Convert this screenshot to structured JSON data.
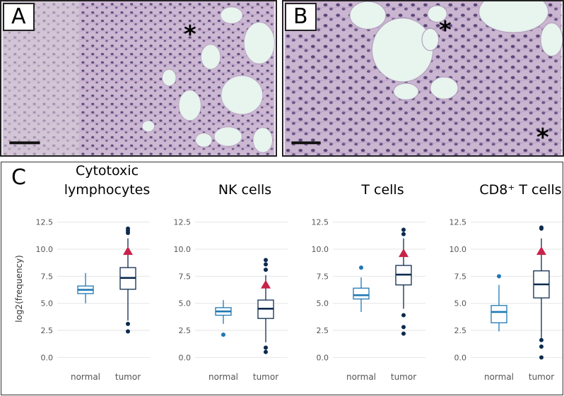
{
  "panels": {
    "a": {
      "label": "A"
    },
    "b": {
      "label": "B"
    },
    "c": {
      "label": "C"
    }
  },
  "colors": {
    "normal": "#1f78b4",
    "tumor": "#0d2b4e",
    "mean_marker": "#c8234a",
    "tissue_bg": "#c9b3cf",
    "fat": "#e8f4ee"
  },
  "icons": {
    "asterisk": "*",
    "scale_bar": "scale-bar"
  },
  "chart_data": [
    {
      "type": "boxplot",
      "title": "Cytotoxic\nlymphocytes",
      "title_lines": [
        "Cytotoxic",
        "lymphocytes"
      ],
      "ylabel": "log2(frequency)",
      "ylim": [
        -0.5,
        13.2
      ],
      "yticks": [
        "0.0",
        "2.5",
        "5.0",
        "7.5",
        "10.0",
        "12.5"
      ],
      "categories": [
        "normal",
        "tumor"
      ],
      "groups": [
        {
          "name": "normal",
          "whisker_low": 5.0,
          "q1": 5.9,
          "median": 6.25,
          "q3": 6.6,
          "whisker_high": 7.8,
          "outliers": []
        },
        {
          "name": "tumor",
          "whisker_low": 3.4,
          "q1": 6.3,
          "median": 7.35,
          "q3": 8.3,
          "whisker_high": 11.0,
          "outliers": [
            11.5,
            11.7,
            11.9,
            3.1,
            2.4
          ],
          "mean": 9.8
        }
      ]
    },
    {
      "type": "boxplot",
      "title": "NK cells",
      "title_lines": [
        "NK cells"
      ],
      "ylabel": "",
      "ylim": [
        -0.5,
        13.2
      ],
      "yticks": [
        "0.0",
        "2.5",
        "5.0",
        "7.5",
        "10.0",
        "12.5"
      ],
      "categories": [
        "normal",
        "tumor"
      ],
      "groups": [
        {
          "name": "normal",
          "whisker_low": 3.1,
          "q1": 3.9,
          "median": 4.25,
          "q3": 4.6,
          "whisker_high": 5.3,
          "outliers": [
            2.1
          ]
        },
        {
          "name": "tumor",
          "whisker_low": 1.4,
          "q1": 3.6,
          "median": 4.5,
          "q3": 5.3,
          "whisker_high": 7.6,
          "outliers": [
            8.1,
            8.6,
            9.0,
            0.9,
            0.5
          ],
          "mean": 6.7
        }
      ]
    },
    {
      "type": "boxplot",
      "title": "T cells",
      "title_lines": [
        "T cells"
      ],
      "ylabel": "",
      "ylim": [
        -0.5,
        13.2
      ],
      "yticks": [
        "0.0",
        "2.5",
        "5.0",
        "7.5",
        "10.0",
        "12.5"
      ],
      "categories": [
        "normal",
        "tumor"
      ],
      "groups": [
        {
          "name": "normal",
          "whisker_low": 4.2,
          "q1": 5.4,
          "median": 5.75,
          "q3": 6.4,
          "whisker_high": 7.4,
          "outliers": [
            8.3
          ]
        },
        {
          "name": "tumor",
          "whisker_low": 4.5,
          "q1": 6.7,
          "median": 7.65,
          "q3": 8.5,
          "whisker_high": 11.0,
          "outliers": [
            11.4,
            11.8,
            3.9,
            2.8,
            2.2
          ],
          "mean": 9.6
        }
      ]
    },
    {
      "type": "boxplot",
      "title": "CD8⁺ T cells",
      "title_lines": [
        "CD8⁺ T cells"
      ],
      "ylabel": "",
      "ylim": [
        -0.5,
        13.2
      ],
      "yticks": [
        "0.0",
        "2.5",
        "5.0",
        "7.5",
        "10.0",
        "12.5"
      ],
      "categories": [
        "normal",
        "tumor"
      ],
      "groups": [
        {
          "name": "normal",
          "whisker_low": 2.4,
          "q1": 3.2,
          "median": 4.2,
          "q3": 4.8,
          "whisker_high": 6.7,
          "outliers": [
            7.5
          ]
        },
        {
          "name": "tumor",
          "whisker_low": 1.8,
          "q1": 5.5,
          "median": 6.75,
          "q3": 8.0,
          "whisker_high": 11.0,
          "outliers": [
            11.9,
            12.0,
            1.6,
            1.0,
            0.0
          ],
          "mean": 9.8
        }
      ]
    }
  ]
}
